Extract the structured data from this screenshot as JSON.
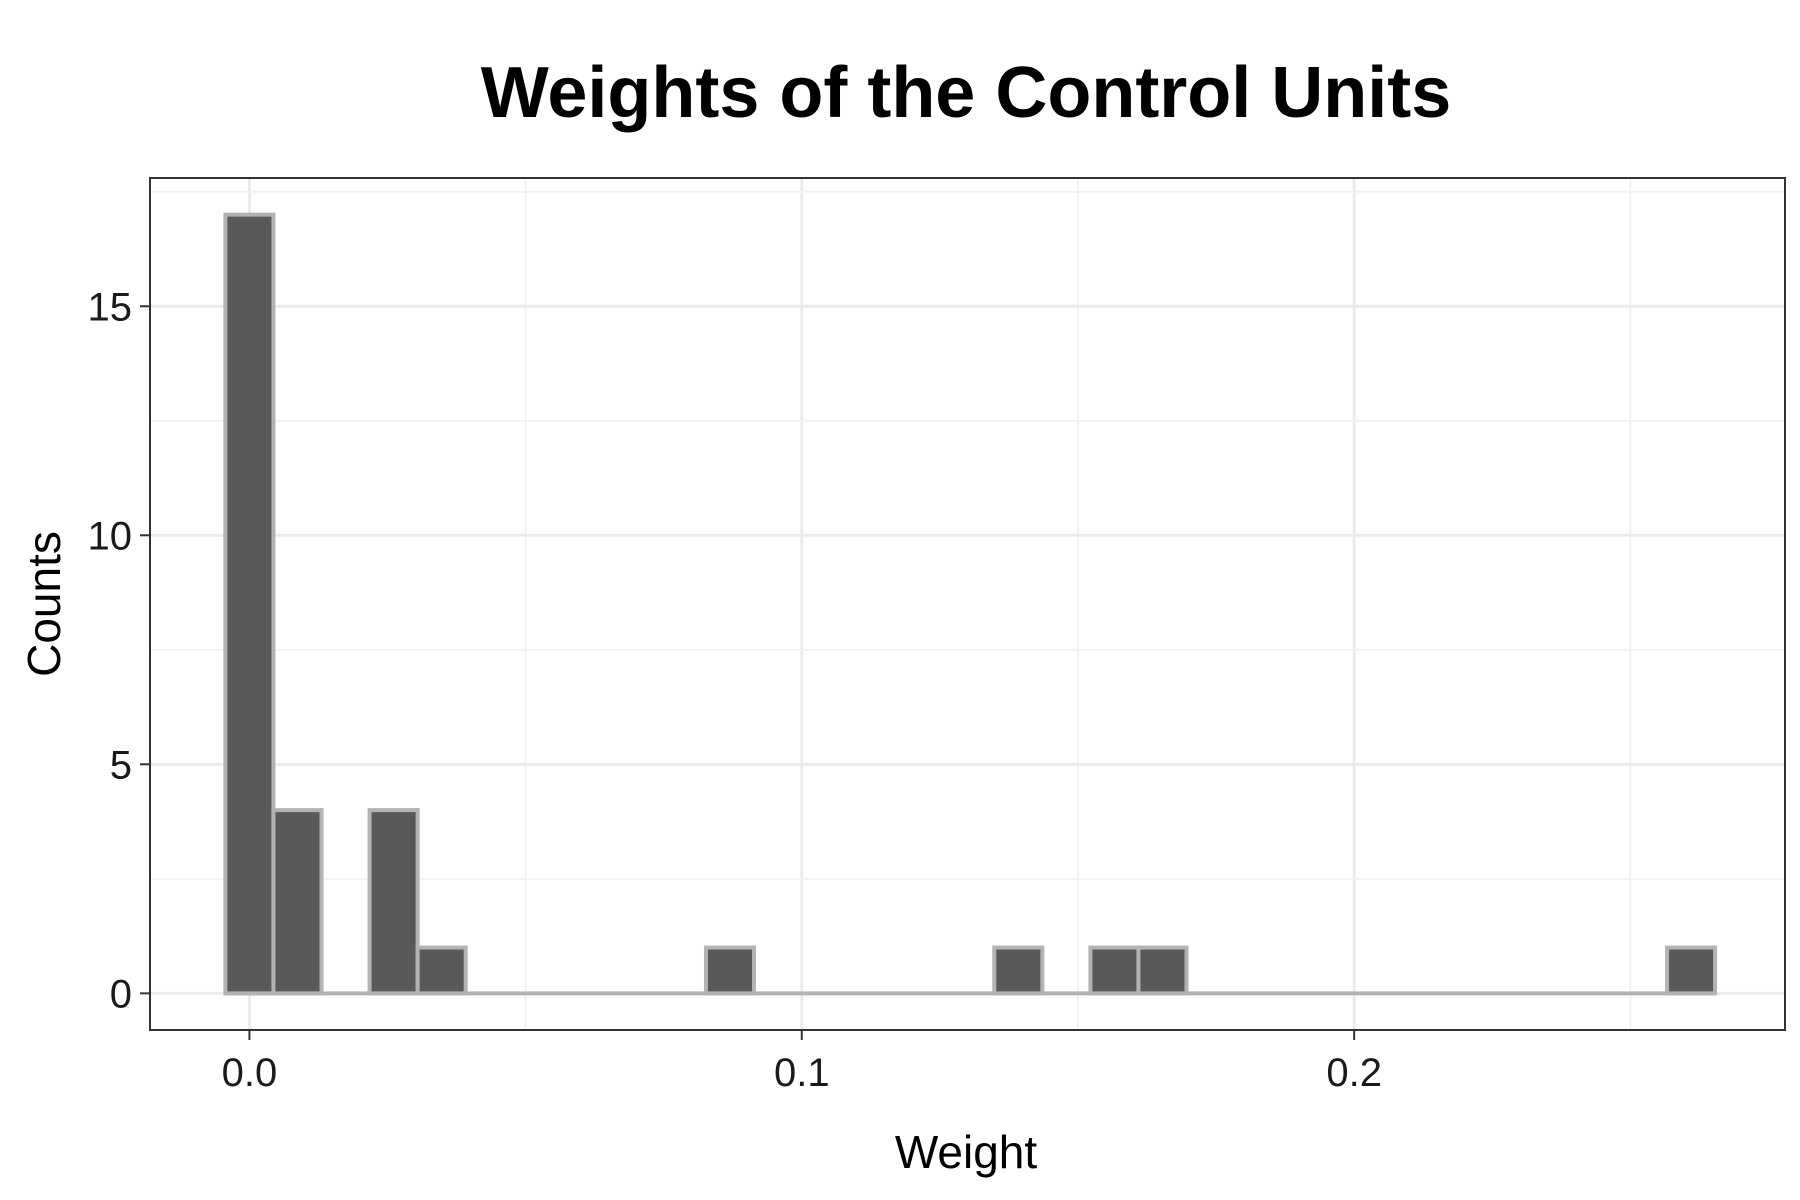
{
  "chart_data": {
    "type": "bar",
    "subtype": "histogram",
    "title": "Weights of the Control Units",
    "xlabel": "Weight",
    "ylabel": "Counts",
    "xlim": [
      -0.018,
      0.278
    ],
    "ylim": [
      -0.8,
      17.8
    ],
    "x_ticks": [
      0.0,
      0.1,
      0.2
    ],
    "x_tick_labels": [
      "0.0",
      "0.1",
      "0.2"
    ],
    "y_ticks": [
      0,
      5,
      10,
      15
    ],
    "y_tick_labels": [
      "0",
      "5",
      "10",
      "15"
    ],
    "bin_width": 0.0087,
    "bins": [
      {
        "center": 0.0,
        "count": 17
      },
      {
        "center": 0.0087,
        "count": 4
      },
      {
        "center": 0.0174,
        "count": 0
      },
      {
        "center": 0.0261,
        "count": 4
      },
      {
        "center": 0.0348,
        "count": 1
      },
      {
        "center": 0.0435,
        "count": 0
      },
      {
        "center": 0.0522,
        "count": 0
      },
      {
        "center": 0.0609,
        "count": 0
      },
      {
        "center": 0.0696,
        "count": 0
      },
      {
        "center": 0.0783,
        "count": 0
      },
      {
        "center": 0.087,
        "count": 1
      },
      {
        "center": 0.0957,
        "count": 0
      },
      {
        "center": 0.1044,
        "count": 0
      },
      {
        "center": 0.1131,
        "count": 0
      },
      {
        "center": 0.1218,
        "count": 0
      },
      {
        "center": 0.1305,
        "count": 0
      },
      {
        "center": 0.1392,
        "count": 1
      },
      {
        "center": 0.1479,
        "count": 0
      },
      {
        "center": 0.1566,
        "count": 1
      },
      {
        "center": 0.1653,
        "count": 1
      },
      {
        "center": 0.174,
        "count": 0
      },
      {
        "center": 0.1827,
        "count": 0
      },
      {
        "center": 0.1914,
        "count": 0
      },
      {
        "center": 0.2001,
        "count": 0
      },
      {
        "center": 0.2088,
        "count": 0
      },
      {
        "center": 0.2175,
        "count": 0
      },
      {
        "center": 0.2262,
        "count": 0
      },
      {
        "center": 0.2349,
        "count": 0
      },
      {
        "center": 0.2436,
        "count": 0
      },
      {
        "center": 0.2523,
        "count": 0
      },
      {
        "center": 0.261,
        "count": 1
      }
    ],
    "grid": true,
    "legend": "none",
    "colors": {
      "bar_fill": "#595959",
      "bar_outline": "#b3b3b3",
      "panel_background": "#ffffff"
    }
  }
}
